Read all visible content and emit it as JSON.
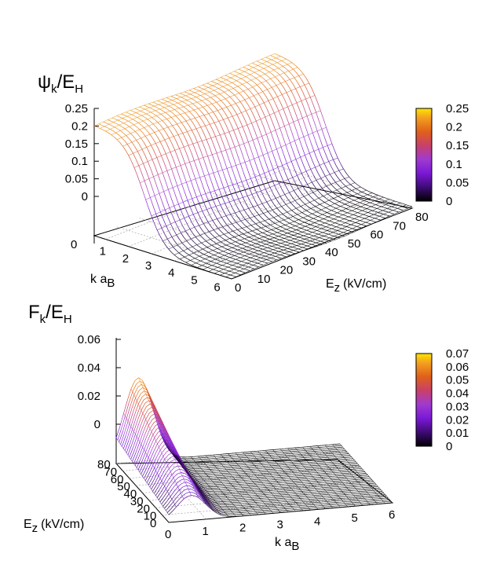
{
  "chart_data": [
    {
      "type": "surface3d",
      "zlabel_main": "ψ",
      "zlabel_sub": "k",
      "zlabel_tail": "/E",
      "zlabel_tail_sub": "H",
      "xlabel_main": "k a",
      "xlabel_sub": "B",
      "ylabel_main": "E",
      "ylabel_sub": "z",
      "ylabel_tail": "(kV/cm)",
      "x_ticks": [
        "1",
        "2",
        "3",
        "4",
        "5",
        "6"
      ],
      "y_ticks": [
        "0",
        "10",
        "20",
        "30",
        "40",
        "50",
        "60",
        "70",
        "80"
      ],
      "z_ticks": [
        "0.25",
        "0.2",
        "0.15",
        "0.1",
        "0.05",
        "0"
      ],
      "z_base_tick": "0",
      "colorbar_ticks": [
        "0.25",
        "0.2",
        "0.15",
        "0.1",
        "0.05",
        "0"
      ],
      "xlim": [
        0.5,
        6.5
      ],
      "ylim": [
        0,
        80
      ],
      "zlim": [
        0,
        0.25
      ],
      "colorbar_range": [
        0,
        0.25
      ],
      "shape": "psi ≈ 0.22 at small k, step drop near k≈2.5-3, ≈0 for large k; nearly independent of Ez"
    },
    {
      "type": "surface3d",
      "zlabel_main": "F",
      "zlabel_sub": "k",
      "zlabel_tail": "/E",
      "zlabel_tail_sub": "H",
      "xlabel_main": "k a",
      "xlabel_sub": "B",
      "ylabel_main": "E",
      "ylabel_sub": "z",
      "ylabel_tail": "(kV/cm)",
      "x_ticks": [
        "0",
        "1",
        "2",
        "3",
        "4",
        "5",
        "6"
      ],
      "y_ticks": [
        "0",
        "10",
        "20",
        "30",
        "40",
        "50",
        "60",
        "70",
        "80"
      ],
      "z_ticks": [
        "0.06",
        "0.04",
        "0.02",
        "0"
      ],
      "colorbar_ticks": [
        "0.07",
        "0.06",
        "0.05",
        "0.04",
        "0.03",
        "0.02",
        "0.01",
        "0"
      ],
      "xlim": [
        0,
        6
      ],
      "ylim": [
        0,
        80
      ],
      "zlim": [
        0,
        0.065
      ],
      "colorbar_range": [
        0,
        0.07
      ],
      "shape": "peak ≈ 0.06 near k≈0.7 at Ez=80, decreasing with lower Ez; ≈0 beyond k≈2.5"
    }
  ]
}
